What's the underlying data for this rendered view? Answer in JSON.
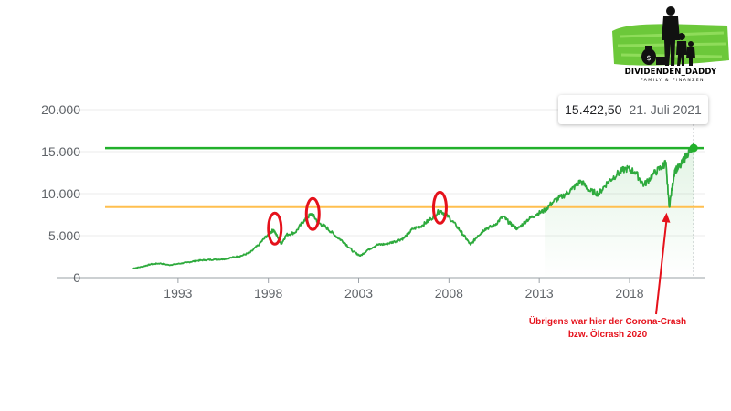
{
  "chart_data": {
    "type": "line",
    "x": [
      1990.5,
      1991.0,
      1991.5,
      1992.0,
      1992.5,
      1993.0,
      1993.5,
      1994.0,
      1994.5,
      1995.0,
      1995.5,
      1996.0,
      1996.5,
      1997.0,
      1997.5,
      1998.0,
      1998.3,
      1998.7,
      1999.0,
      1999.5,
      2000.0,
      2000.4,
      2000.8,
      2001.2,
      2001.7,
      2002.2,
      2002.7,
      2003.1,
      2003.5,
      2004.0,
      2004.5,
      2005.0,
      2005.5,
      2006.0,
      2006.5,
      2007.0,
      2007.5,
      2007.9,
      2008.4,
      2008.8,
      2009.2,
      2009.6,
      2010.0,
      2010.5,
      2011.0,
      2011.4,
      2011.8,
      2012.3,
      2012.8,
      2013.3,
      2013.8,
      2014.3,
      2014.8,
      2015.3,
      2015.8,
      2016.3,
      2016.8,
      2017.3,
      2017.8,
      2018.3,
      2018.8,
      2019.3,
      2019.8,
      2020.0,
      2020.2,
      2020.5,
      2020.8,
      2021.2,
      2021.55
    ],
    "series": [
      {
        "values": [
          1100,
          1300,
          1600,
          1700,
          1500,
          1650,
          1800,
          2000,
          2100,
          2150,
          2200,
          2400,
          2600,
          3000,
          4000,
          5200,
          5700,
          4000,
          5100,
          5400,
          6900,
          7600,
          6500,
          6000,
          5000,
          4200,
          3100,
          2600,
          3300,
          3900,
          4000,
          4300,
          4700,
          5800,
          6200,
          7000,
          8000,
          7400,
          6200,
          5100,
          3900,
          5000,
          5800,
          6200,
          7300,
          6400,
          5800,
          6800,
          7500,
          8000,
          9100,
          9700,
          10500,
          11500,
          10300,
          10000,
          11400,
          12300,
          13000,
          12600,
          11000,
          12300,
          13200,
          13700,
          8400,
          12800,
          13200,
          14800,
          15422.5
        ]
      }
    ],
    "xlim": [
      1988.2,
      2022.2
    ],
    "ylim": [
      0,
      20000
    ],
    "yticks": [
      "20.000",
      "15.000",
      "10.000",
      "5.000",
      "0"
    ],
    "ytick_values": [
      20000,
      15000,
      10000,
      5000,
      0
    ],
    "xticks": [
      "1993",
      "1998",
      "2003",
      "2008",
      "2013",
      "2018"
    ],
    "xtick_values": [
      1993,
      1998,
      2003,
      2008,
      2013,
      2018
    ],
    "reference_lines": [
      {
        "value": 15422.5,
        "color": "#22b02b"
      },
      {
        "value": 8400,
        "color": "#ffbf4f"
      }
    ],
    "highlight_years": [
      1998.35,
      2000.45,
      2007.5
    ],
    "line_color": "#2eaa3d",
    "grid": true
  },
  "tooltip": {
    "value": "15.422,50",
    "date": "21. Juli 2021"
  },
  "annotation": {
    "line1": "Übrigens war hier der Corona-Crash",
    "line2": "bzw. Ölcrash 2020",
    "color": "#e5111b"
  },
  "logo": {
    "title": "DIVIDENDEN_DADDY",
    "subtitle": "FAMILY & FINANZEN"
  }
}
